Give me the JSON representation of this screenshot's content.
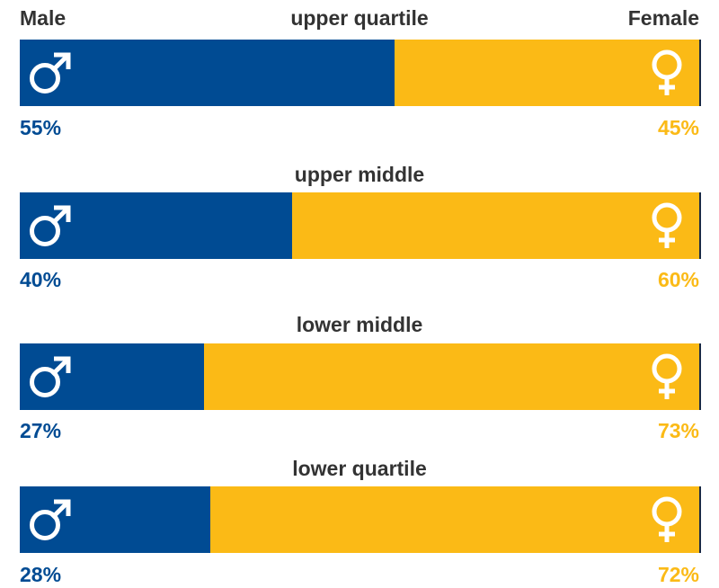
{
  "headers": {
    "male": "Male",
    "female": "Female"
  },
  "colors": {
    "male": "#004B93",
    "female": "#FBBA16",
    "title": "#333333"
  },
  "icons": {
    "male": "male-symbol-icon",
    "female": "female-symbol-icon"
  },
  "chart_data": {
    "type": "bar",
    "orientation": "horizontal-stacked-100",
    "categories": [
      "upper quartile",
      "upper middle",
      "lower middle",
      "lower quartile"
    ],
    "series": [
      {
        "name": "Male",
        "values": [
          55,
          40,
          27,
          28
        ],
        "labels": [
          "55%",
          "40%",
          "27%",
          "28%"
        ]
      },
      {
        "name": "Female",
        "values": [
          45,
          60,
          73,
          72
        ],
        "labels": [
          "45%",
          "60%",
          "73%",
          "72%"
        ]
      }
    ],
    "xlim": [
      0,
      100
    ],
    "grid": false,
    "legend": "top"
  }
}
